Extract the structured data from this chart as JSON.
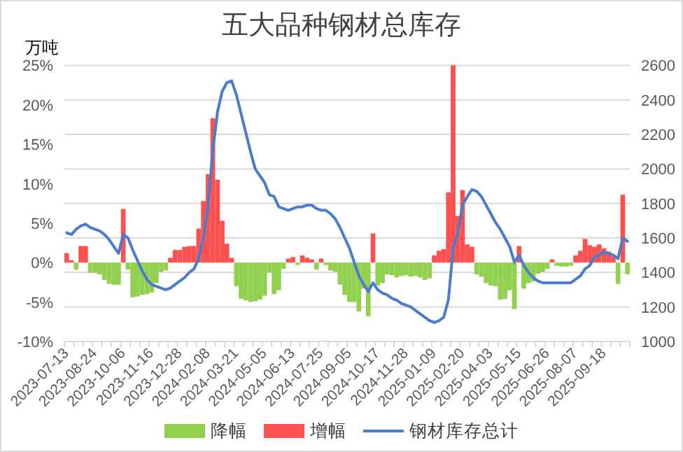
{
  "chart_data": {
    "type": "bar",
    "title": "五大品种钢材总库存",
    "ylabel": "万吨",
    "categories": [
      "2023-07-13",
      null,
      null,
      null,
      null,
      null,
      "2023-08-24",
      null,
      null,
      null,
      null,
      null,
      "2023-10-06",
      null,
      null,
      null,
      null,
      null,
      "2023-11-16",
      null,
      null,
      null,
      null,
      null,
      "2023-12-28",
      null,
      null,
      null,
      null,
      null,
      "2024-02-08",
      null,
      null,
      null,
      null,
      null,
      "2024-03-21",
      null,
      null,
      null,
      null,
      null,
      "2024-05-05",
      null,
      null,
      null,
      null,
      null,
      "2024-06-13",
      null,
      null,
      null,
      null,
      null,
      "2024-07-25",
      null,
      null,
      null,
      null,
      null,
      "2024-09-05",
      null,
      null,
      null,
      null,
      null,
      "2024-10-17",
      null,
      null,
      null,
      null,
      null,
      "2024-11-28",
      null,
      null,
      null,
      null,
      null,
      "2025-01-09",
      null,
      null,
      null,
      null,
      null,
      "2025-02-20",
      null,
      null,
      null,
      null,
      null,
      "2025-04-03",
      null,
      null,
      null,
      null,
      null,
      "2025-05-15",
      null,
      null,
      null,
      null,
      null,
      "2025-06-26",
      null,
      null,
      null,
      null,
      null,
      "2025-08-07",
      null,
      null,
      null,
      null,
      null,
      "2025-09-18",
      null,
      null,
      null,
      null,
      null
    ],
    "series": [
      {
        "name": "降幅",
        "color": "#92d050",
        "values": [
          null,
          null,
          -0.9,
          null,
          null,
          -1.3,
          -1.3,
          -1.5,
          -2.2,
          -2.7,
          -2.8,
          -2.8,
          null,
          -0.9,
          -4.4,
          -4.3,
          -4.1,
          -4.0,
          -3.8,
          -2.6,
          -1.2,
          -1.0,
          null,
          null,
          null,
          null,
          null,
          null,
          null,
          null,
          null,
          null,
          null,
          null,
          null,
          null,
          -3.0,
          -4.6,
          -4.8,
          -5.0,
          -4.9,
          -4.7,
          -4.2,
          -1.3,
          -4.0,
          -3.5,
          -0.8,
          null,
          null,
          -0.3,
          null,
          null,
          null,
          -0.9,
          null,
          -0.3,
          -1.0,
          -1.2,
          -2.8,
          -4.1,
          -5.0,
          -5.0,
          -6.2,
          -3.3,
          -6.8,
          null,
          -2.9,
          -2.6,
          -1.5,
          -1.6,
          -1.9,
          -1.7,
          -1.6,
          -1.8,
          -1.7,
          -1.9,
          -2.2,
          -2.0,
          null,
          null,
          null,
          null,
          null,
          null,
          null,
          null,
          null,
          -1.5,
          -1.8,
          -2.6,
          -2.9,
          -3.0,
          -4.7,
          -4.6,
          -3.5,
          -5.9,
          null,
          -3.3,
          -2.6,
          -2.4,
          -1.4,
          -1.2,
          -0.8,
          null,
          -0.4,
          -0.5,
          -0.5,
          -0.4,
          null,
          null,
          null,
          null,
          null,
          null,
          null,
          null,
          null,
          -2.7,
          null,
          -1.5
        ]
      },
      {
        "name": "增幅",
        "color": "#ff5050",
        "values": [
          1.2,
          0.3,
          null,
          2.1,
          2.1,
          null,
          null,
          null,
          null,
          null,
          null,
          null,
          6.8,
          null,
          null,
          null,
          null,
          null,
          null,
          null,
          null,
          null,
          0.6,
          1.6,
          1.6,
          2.0,
          2.1,
          2.1,
          4.3,
          7.8,
          11.2,
          18.3,
          10.5,
          5.3,
          2.4,
          0.6,
          null,
          null,
          null,
          null,
          null,
          null,
          null,
          null,
          null,
          null,
          null,
          0.5,
          0.7,
          null,
          0.9,
          0.6,
          0.4,
          null,
          0.5,
          null,
          null,
          null,
          null,
          null,
          null,
          null,
          null,
          null,
          null,
          3.7,
          null,
          null,
          null,
          null,
          null,
          null,
          null,
          null,
          null,
          null,
          null,
          null,
          0.9,
          1.5,
          1.7,
          8.9,
          25.0,
          5.9,
          9.2,
          2.3,
          2.0,
          null,
          null,
          null,
          null,
          null,
          null,
          null,
          null,
          null,
          2.1,
          null,
          null,
          null,
          null,
          null,
          null,
          0.4,
          null,
          null,
          null,
          null,
          0.9,
          1.5,
          3.0,
          2.2,
          2.0,
          2.3,
          1.8,
          1.4,
          0.8,
          null,
          8.6,
          null
        ]
      },
      {
        "name": "钢材库存总计",
        "type": "line",
        "axis": "y2",
        "color": "#4a7ccb",
        "values": [
          1630,
          1620,
          1650,
          1670,
          1680,
          1660,
          1650,
          1640,
          1620,
          1590,
          1550,
          1510,
          1620,
          1600,
          1530,
          1470,
          1410,
          1360,
          1330,
          1320,
          1310,
          1300,
          1310,
          1330,
          1350,
          1370,
          1400,
          1420,
          1480,
          1600,
          1780,
          2110,
          2330,
          2450,
          2500,
          2510,
          2430,
          2320,
          2210,
          2100,
          2000,
          1960,
          1920,
          1850,
          1840,
          1780,
          1770,
          1760,
          1770,
          1780,
          1780,
          1790,
          1790,
          1770,
          1760,
          1760,
          1740,
          1710,
          1660,
          1600,
          1540,
          1460,
          1380,
          1330,
          1290,
          1340,
          1300,
          1280,
          1270,
          1250,
          1240,
          1220,
          1210,
          1200,
          1180,
          1160,
          1140,
          1120,
          1110,
          1120,
          1140,
          1240,
          1540,
          1630,
          1790,
          1840,
          1880,
          1870,
          1840,
          1790,
          1740,
          1690,
          1650,
          1600,
          1550,
          1460,
          1500,
          1440,
          1400,
          1370,
          1350,
          1340,
          1340,
          1340,
          1340,
          1340,
          1340,
          1340,
          1360,
          1380,
          1420,
          1440,
          1490,
          1500,
          1520,
          1510,
          1500,
          1480,
          1600,
          1580
        ]
      }
    ],
    "ylim": [
      -10,
      25
    ],
    "yticks": [
      {
        "value": -10,
        "label": "-10%"
      },
      {
        "value": -5,
        "label": "-5%"
      },
      {
        "value": 0,
        "label": "0%"
      },
      {
        "value": 5,
        "label": "5%"
      },
      {
        "value": 10,
        "label": "10%"
      },
      {
        "value": 15,
        "label": "15%"
      },
      {
        "value": 20,
        "label": "20%"
      },
      {
        "value": 25,
        "label": "25%"
      }
    ],
    "y2lim": [
      1000,
      2600
    ],
    "y2ticks": [
      1000,
      1200,
      1400,
      1600,
      1800,
      2000,
      2200,
      2400,
      2600
    ],
    "grid": "y2",
    "legend": "bottom"
  }
}
